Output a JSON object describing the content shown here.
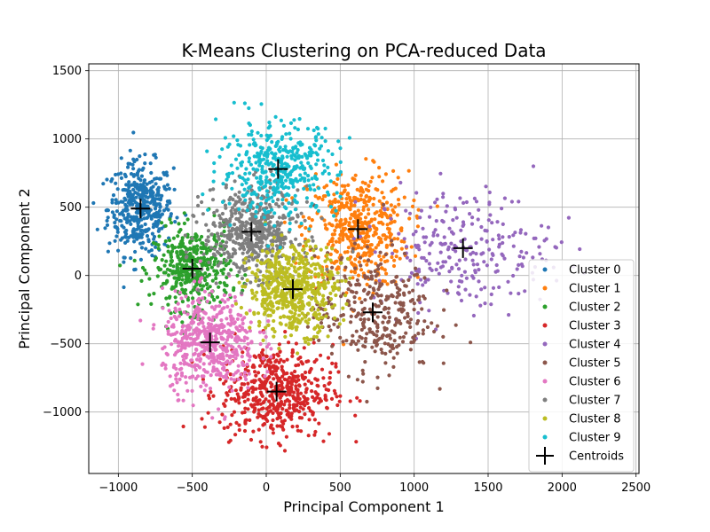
{
  "chart_data": {
    "type": "scatter",
    "title": "K-Means Clustering on PCA-reduced Data",
    "xlabel": "Principal Component 1",
    "ylabel": "Principal Component 2",
    "xlim": [
      -1200,
      2520
    ],
    "ylim": [
      -1450,
      1550
    ],
    "xticks": [
      -1000,
      -500,
      0,
      500,
      1000,
      1500,
      2000,
      2500
    ],
    "yticks": [
      -1000,
      -500,
      0,
      500,
      1000,
      1500
    ],
    "grid": true,
    "legend_position": "lower-right",
    "series": [
      {
        "name": "Cluster 0",
        "color": "#1f77b4",
        "center": [
          -850,
          490
        ],
        "spread": [
          110,
          170
        ],
        "count": 420
      },
      {
        "name": "Cluster 1",
        "color": "#ff7f0e",
        "center": [
          620,
          340
        ],
        "spread": [
          170,
          210
        ],
        "count": 480
      },
      {
        "name": "Cluster 2",
        "color": "#2ca02c",
        "center": [
          -500,
          50
        ],
        "spread": [
          130,
          150
        ],
        "count": 420
      },
      {
        "name": "Cluster 3",
        "color": "#d62728",
        "center": [
          70,
          -850
        ],
        "spread": [
          190,
          170
        ],
        "count": 520
      },
      {
        "name": "Cluster 4",
        "color": "#9467bd",
        "center": [
          1330,
          200
        ],
        "spread": [
          300,
          220
        ],
        "count": 260
      },
      {
        "name": "Cluster 5",
        "color": "#8c564b",
        "center": [
          720,
          -270
        ],
        "spread": [
          200,
          220
        ],
        "count": 340
      },
      {
        "name": "Cluster 6",
        "color": "#e377c2",
        "center": [
          -380,
          -490
        ],
        "spread": [
          160,
          180
        ],
        "count": 520
      },
      {
        "name": "Cluster 7",
        "color": "#7f7f7f",
        "center": [
          -100,
          320
        ],
        "spread": [
          160,
          160
        ],
        "count": 520
      },
      {
        "name": "Cluster 8",
        "color": "#bcbd22",
        "center": [
          180,
          -100
        ],
        "spread": [
          150,
          160
        ],
        "count": 560
      },
      {
        "name": "Cluster 9",
        "color": "#17becf",
        "center": [
          80,
          780
        ],
        "spread": [
          200,
          170
        ],
        "count": 420
      }
    ],
    "centroids": {
      "name": "Centroids",
      "color": "#000000",
      "points": [
        [
          -850,
          490
        ],
        [
          620,
          340
        ],
        [
          -500,
          50
        ],
        [
          70,
          -850
        ],
        [
          1330,
          200
        ],
        [
          720,
          -270
        ],
        [
          -380,
          -490
        ],
        [
          -100,
          320
        ],
        [
          180,
          -100
        ],
        [
          80,
          780
        ]
      ]
    }
  }
}
